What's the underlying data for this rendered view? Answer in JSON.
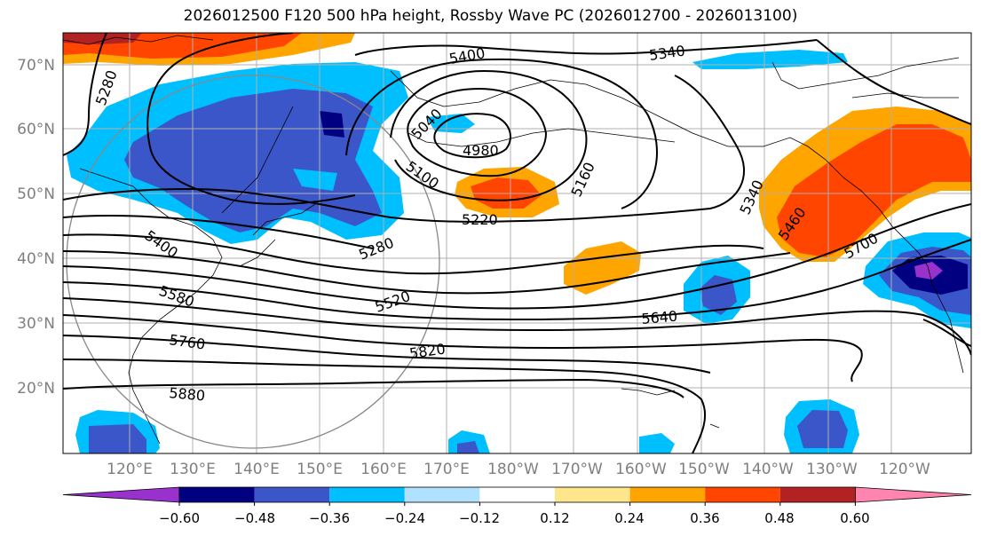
{
  "title": "2026012500 F120 500 hPa height, Rossby Wave PC (2026012700 - 2026013100)",
  "lat_labels": [
    "70°N",
    "60°N",
    "50°N",
    "40°N",
    "30°N",
    "20°N"
  ],
  "lon_labels": [
    "120°E",
    "130°E",
    "140°E",
    "150°E",
    "160°E",
    "170°E",
    "180°W",
    "170°W",
    "160°W",
    "150°W",
    "140°W",
    "130°W",
    "120°W"
  ],
  "contour_labels": [
    "5280",
    "5400",
    "5340",
    "5040",
    "4980",
    "5100",
    "5160",
    "5220",
    "5280",
    "5400",
    "5340",
    "5460",
    "5700",
    "5520",
    "5580",
    "5640",
    "5760",
    "5820",
    "5880"
  ],
  "colorbar": {
    "colors": [
      "#9932cc",
      "#000080",
      "#3a56c8",
      "#00bfff",
      "#b0e2ff",
      "#ffffff",
      "#ffe68c",
      "#ffa500",
      "#ff4500",
      "#b22222",
      "#ff85b0"
    ],
    "tick_labels": [
      "−0.60",
      "−0.48",
      "−0.36",
      "−0.24",
      "−0.12",
      "0.12",
      "0.24",
      "0.36",
      "0.48",
      "0.60"
    ],
    "tick_values": [
      -0.6,
      -0.48,
      -0.36,
      -0.24,
      -0.12,
      0.12,
      0.24,
      0.36,
      0.48,
      0.6
    ]
  }
}
